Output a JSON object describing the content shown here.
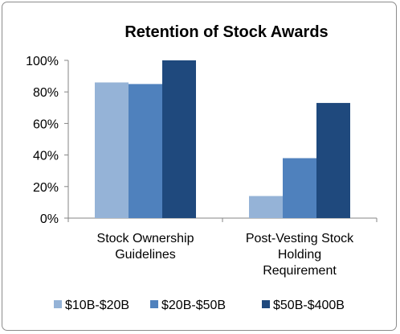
{
  "chart_data": {
    "type": "bar",
    "title": "Retention of Stock Awards",
    "categories": [
      "Stock Ownership Guidelines",
      "Post-Vesting Stock Holding Requirement"
    ],
    "category_lines": [
      [
        "Stock Ownership",
        "Guidelines"
      ],
      [
        "Post-Vesting Stock",
        "Holding",
        "Requirement"
      ]
    ],
    "series": [
      {
        "name": "$10B-$20B",
        "values": [
          86,
          14
        ],
        "color": "#95b3d7"
      },
      {
        "name": "$20B-$50B",
        "values": [
          85,
          38
        ],
        "color": "#4f81bd"
      },
      {
        "name": "$50B-$400B",
        "values": [
          100,
          73
        ],
        "color": "#1f497d"
      }
    ],
    "ylim": [
      0,
      100
    ],
    "yticks": [
      "0%",
      "20%",
      "40%",
      "60%",
      "80%",
      "100%"
    ],
    "xlabel": "",
    "ylabel": "",
    "grid": false,
    "legend_position": "bottom"
  }
}
